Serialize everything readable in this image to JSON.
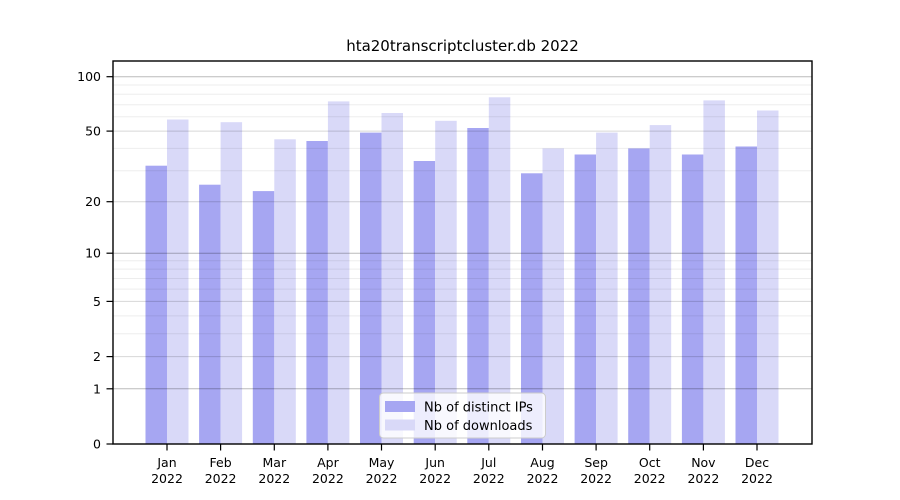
{
  "title": "hta20transcriptcluster.db 2022",
  "colors": {
    "distinct_ips_bar": "#a6a6f2",
    "downloads_bar": "#d9d9f8",
    "legend_border": "#cccccc",
    "axis": "#000000"
  },
  "legend": {
    "entries": [
      {
        "label": "Nb of distinct IPs"
      },
      {
        "label": "Nb of downloads"
      }
    ]
  },
  "chart_data": {
    "type": "bar",
    "title": "hta20transcriptcluster.db 2022",
    "categories": [
      "Jan 2022",
      "Feb 2022",
      "Mar 2022",
      "Apr 2022",
      "May 2022",
      "Jun 2022",
      "Jul 2022",
      "Aug 2022",
      "Sep 2022",
      "Oct 2022",
      "Nov 2022",
      "Dec 2022"
    ],
    "x_tick_line1": [
      "Jan",
      "Feb",
      "Mar",
      "Apr",
      "May",
      "Jun",
      "Jul",
      "Aug",
      "Sep",
      "Oct",
      "Nov",
      "Dec"
    ],
    "x_tick_line2": [
      "2022",
      "2022",
      "2022",
      "2022",
      "2022",
      "2022",
      "2022",
      "2022",
      "2022",
      "2022",
      "2022",
      "2022"
    ],
    "series": [
      {
        "name": "Nb of distinct IPs",
        "color": "#a6a6f2",
        "values": [
          32,
          25,
          23,
          44,
          49,
          34,
          52,
          29,
          37,
          40,
          37,
          41
        ]
      },
      {
        "name": "Nb of downloads",
        "color": "#d9d9f8",
        "values": [
          58,
          56,
          45,
          73,
          63,
          57,
          77,
          40,
          49,
          54,
          74,
          65
        ]
      }
    ],
    "xlabel": "",
    "ylabel": "",
    "yscale": "log1p",
    "ylim": [
      0,
      122
    ],
    "y_tick_values": [
      0,
      1,
      2,
      5,
      10,
      20,
      50,
      100
    ],
    "y_minor_grid_values": [
      3,
      4,
      6,
      7,
      8,
      9,
      30,
      40,
      60,
      70,
      80,
      90
    ],
    "grid": true,
    "legend_position": "bottom-center"
  }
}
